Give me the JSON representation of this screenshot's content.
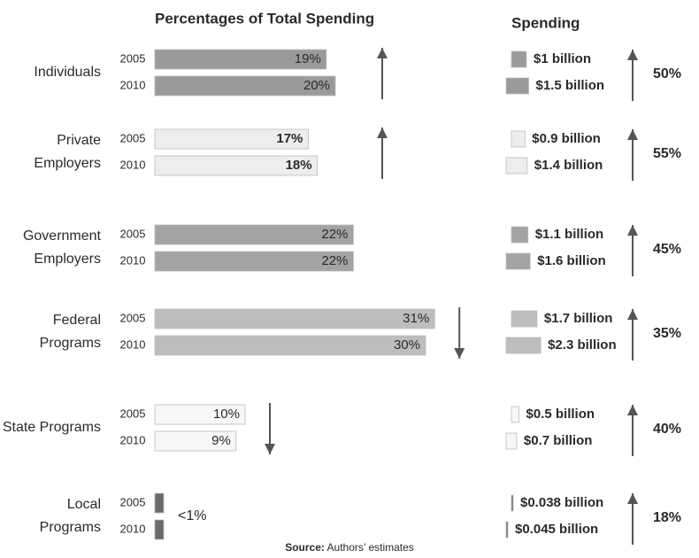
{
  "chart_data": [
    {
      "type": "bar",
      "title": "Percentages of Total Spending",
      "categories": [
        "Individuals",
        "Private Employers",
        "Government Employers",
        "Federal Programs",
        "State Programs",
        "Local Programs"
      ],
      "colors": [
        "#9a9a9a",
        "#ededed",
        "#a3a3a3",
        "#bdbdbd",
        "#f7f7f7",
        "#6a6a6a"
      ],
      "trend": [
        "up",
        "up",
        null,
        "down",
        "down",
        null
      ],
      "series": [
        {
          "name": "2005",
          "values": [
            19,
            17,
            22,
            31,
            10,
            0.5
          ],
          "value_labels": [
            "19%",
            "17%",
            "22%",
            "31%",
            "10%",
            "<1%"
          ]
        },
        {
          "name": "2010",
          "values": [
            20,
            18,
            22,
            30,
            9,
            0.5
          ],
          "value_labels": [
            "20%",
            "18%",
            "22%",
            "30%",
            "9%",
            null
          ]
        }
      ]
    },
    {
      "type": "bar",
      "title": "Spending",
      "colors": [
        "#9a9a9a",
        "#ededed",
        "#a3a3a3",
        "#bdbdbd",
        "#f7f7f7",
        "#6a6a6a"
      ],
      "series": [
        {
          "name": "2005",
          "values": [
            1,
            0.9,
            1.1,
            1.7,
            0.5,
            0.038
          ],
          "value_labels": [
            "$1 billion",
            "$0.9 billion",
            "$1.1 billion",
            "$1.7 billion",
            "$0.5 billion",
            "$0.038 billion"
          ]
        },
        {
          "name": "2010",
          "values": [
            1.5,
            1.4,
            1.6,
            2.3,
            0.7,
            0.045
          ],
          "value_labels": [
            "$1.5 billion",
            "$1.4 billion",
            "$1.6 billion",
            "$2.3 billion",
            "$0.7 billion",
            "$0.045 billion"
          ]
        }
      ],
      "change": [
        50,
        55,
        45,
        35,
        40,
        18
      ],
      "change_labels": [
        "50%",
        "55%",
        "45%",
        "35%",
        "40%",
        "18%"
      ]
    }
  ],
  "source": {
    "label": "Source:",
    "text": "Authors’ estimates"
  }
}
